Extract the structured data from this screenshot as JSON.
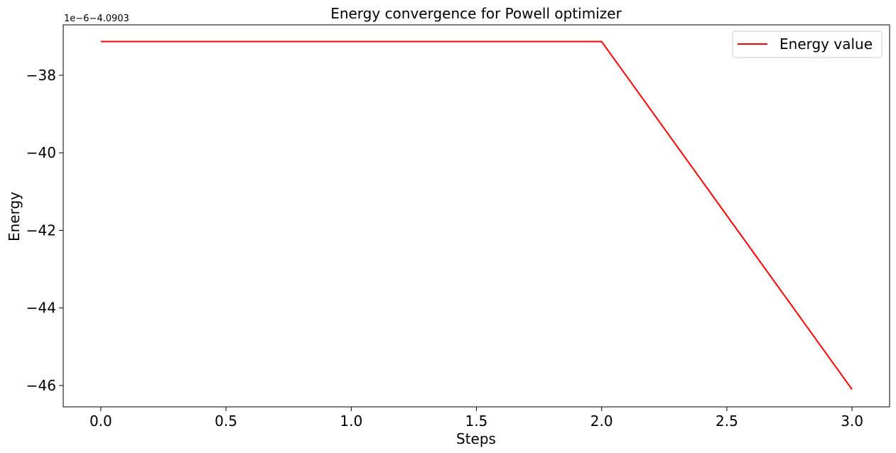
{
  "chart_data": {
    "type": "line",
    "title": "Energy convergence for Powell optimizer",
    "xlabel": "Steps",
    "ylabel": "Energy",
    "offset_text": "1e−6−4.0903",
    "x": [
      0,
      1,
      2,
      3
    ],
    "series": [
      {
        "name": "Energy value",
        "color": "#ff0000",
        "values": [
          -37.13,
          -37.13,
          -37.13,
          -46.1
        ]
      }
    ],
    "xlim": [
      -0.15,
      3.15
    ],
    "ylim": [
      -46.55,
      -36.7
    ],
    "xticks": [
      0.0,
      0.5,
      1.0,
      1.5,
      2.0,
      2.5,
      3.0
    ],
    "xtick_labels": [
      "0.0",
      "0.5",
      "1.0",
      "1.5",
      "2.0",
      "2.5",
      "3.0"
    ],
    "yticks": [
      -38,
      -40,
      -42,
      -44,
      -46
    ],
    "ytick_labels": [
      "−38",
      "−40",
      "−42",
      "−44",
      "−46"
    ],
    "grid": false,
    "legend_position": "top-right"
  }
}
